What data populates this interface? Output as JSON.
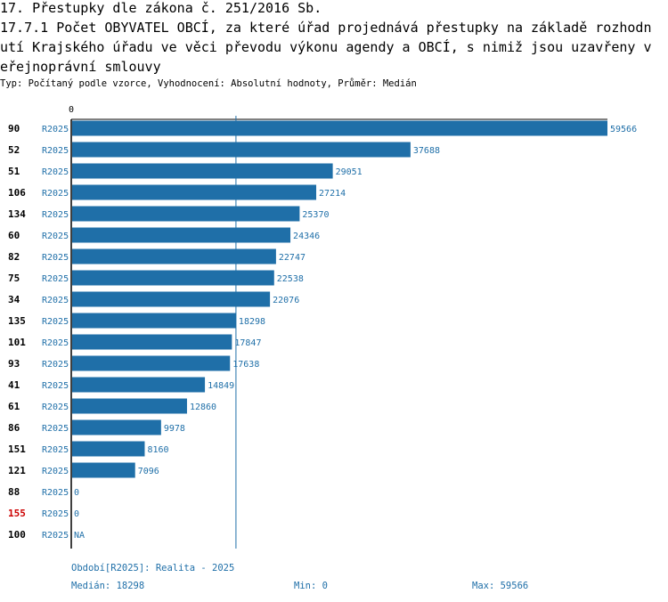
{
  "header": {
    "line1": "17. Přestupky dle zákona č. 251/2016 Sb.",
    "line2": "17.7.1 Počet OBYVATEL OBCÍ, za které úřad projednává přestupky na základě rozhodn",
    "line3": "utí Krajského úřadu ve věci převodu výkonu agendy a OBCÍ, s nimiž jsou uzavřeny v",
    "line4": "eřejnoprávní smlouvy",
    "subtitle": "Typ: Počítaný podle vzorce, Vyhodnocení: Absolutní hodnoty, Průměr: Medián"
  },
  "colors": {
    "bar": "#1f6fa8",
    "label": "#1f6fa8",
    "highlight": "#cc0000"
  },
  "chart_data": {
    "type": "bar",
    "orientation": "horizontal",
    "axis_zero_label": "0",
    "xlim": [
      0,
      59566
    ],
    "median": 18298,
    "period_tag": "R2025",
    "categories": [
      "90",
      "52",
      "51",
      "106",
      "134",
      "60",
      "82",
      "75",
      "34",
      "135",
      "101",
      "93",
      "41",
      "61",
      "86",
      "151",
      "121",
      "88",
      "155",
      "100"
    ],
    "highlighted": [
      "155"
    ],
    "values": [
      59566,
      37688,
      29051,
      27214,
      25370,
      24346,
      22747,
      22538,
      22076,
      18298,
      17847,
      17638,
      14849,
      12860,
      9978,
      8160,
      7096,
      0,
      0,
      null
    ],
    "value_labels": [
      "59566",
      "37688",
      "29051",
      "27214",
      "25370",
      "24346",
      "22747",
      "22538",
      "22076",
      "18298",
      "17847",
      "17638",
      "14849",
      "12860",
      "9978",
      "8160",
      "7096",
      "0",
      "0",
      "NA"
    ]
  },
  "footer": {
    "period": "Období[R2025]: Realita - 2025",
    "median": "Medián: 18298",
    "min": "Min: 0",
    "max": "Max: 59566"
  }
}
